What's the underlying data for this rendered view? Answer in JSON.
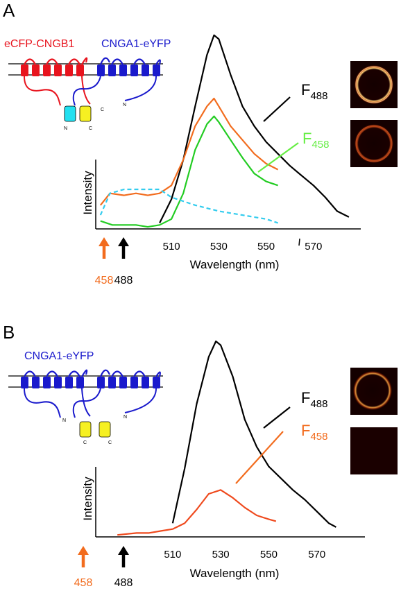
{
  "panels": [
    {
      "letter": "A",
      "construct_labels": [
        {
          "text": "eCFP-CNGB1",
          "color": "#e8141e"
        },
        {
          "text": "CNGA1-eYFP",
          "color": "#1a1acc"
        }
      ],
      "terminal_labels": {
        "n1": "N",
        "c1": "C",
        "c2": "C",
        "n2": "N"
      },
      "chart_data": {
        "type": "line",
        "xlabel": "Wavelength (nm)",
        "ylabel": "Intensity",
        "xticks": [
          510,
          530,
          550,
          570
        ],
        "xlim": [
          478,
          590
        ],
        "ylim": [
          0,
          100
        ],
        "series": [
          {
            "key": "F488",
            "color": "#000000",
            "dash": false,
            "points": [
              [
                505,
                3
              ],
              [
                510,
                15
              ],
              [
                515,
                35
              ],
              [
                520,
                62
              ],
              [
                525,
                88
              ],
              [
                528,
                98
              ],
              [
                530,
                96
              ],
              [
                535,
                78
              ],
              [
                540,
                62
              ],
              [
                545,
                52
              ],
              [
                550,
                44
              ],
              [
                555,
                38
              ],
              [
                560,
                32
              ],
              [
                565,
                27
              ],
              [
                570,
                22
              ],
              [
                575,
                16
              ],
              [
                580,
                9
              ],
              [
                585,
                6
              ]
            ]
          },
          {
            "key": "orange",
            "color": "#f26c1e",
            "dash": false,
            "points": [
              [
                480,
                12
              ],
              [
                484,
                18
              ],
              [
                490,
                17
              ],
              [
                495,
                18
              ],
              [
                500,
                17
              ],
              [
                505,
                18
              ],
              [
                510,
                22
              ],
              [
                515,
                35
              ],
              [
                520,
                52
              ],
              [
                525,
                62
              ],
              [
                528,
                66
              ],
              [
                530,
                62
              ],
              [
                535,
                52
              ],
              [
                540,
                45
              ],
              [
                545,
                38
              ],
              [
                550,
                33
              ],
              [
                555,
                30
              ]
            ]
          },
          {
            "key": "F458",
            "color": "#22cc22",
            "dash": false,
            "points": [
              [
                480,
                4
              ],
              [
                485,
                2
              ],
              [
                490,
                2
              ],
              [
                495,
                2
              ],
              [
                500,
                1
              ],
              [
                505,
                2
              ],
              [
                510,
                5
              ],
              [
                515,
                18
              ],
              [
                520,
                40
              ],
              [
                525,
                53
              ],
              [
                528,
                57
              ],
              [
                530,
                54
              ],
              [
                535,
                45
              ],
              [
                540,
                36
              ],
              [
                545,
                28
              ],
              [
                550,
                24
              ],
              [
                555,
                22
              ]
            ]
          },
          {
            "key": "cyan",
            "color": "#33ccee",
            "dash": true,
            "points": [
              [
                480,
                7
              ],
              [
                484,
                18
              ],
              [
                490,
                20
              ],
              [
                500,
                20
              ],
              [
                505,
                20
              ],
              [
                510,
                16
              ],
              [
                520,
                12
              ],
              [
                530,
                9
              ],
              [
                540,
                7
              ],
              [
                550,
                5
              ],
              [
                555,
                3
              ]
            ]
          }
        ],
        "annotations": [
          {
            "base": "F",
            "sub": "488",
            "color": "#000000"
          },
          {
            "base": "F",
            "sub": "458",
            "color": "#66ee44"
          }
        ],
        "excitation_arrows": [
          {
            "label": "458",
            "color": "#f26c1e"
          },
          {
            "label": "488",
            "color": "#000000"
          }
        ]
      }
    },
    {
      "letter": "B",
      "construct_labels": [
        {
          "text": "CNGA1-eYFP",
          "color": "#1a1acc"
        }
      ],
      "terminal_labels": {
        "n1": "N",
        "c1": "C",
        "c2": "C",
        "n2": "N"
      },
      "chart_data": {
        "type": "line",
        "xlabel": "Wavelength (nm)",
        "ylabel": "Intensity",
        "xticks": [
          510,
          530,
          550,
          570
        ],
        "xlim": [
          478,
          590
        ],
        "ylim": [
          0,
          100
        ],
        "series": [
          {
            "key": "F488",
            "color": "#000000",
            "dash": false,
            "points": [
              [
                510,
                7
              ],
              [
                515,
                35
              ],
              [
                520,
                68
              ],
              [
                525,
                92
              ],
              [
                528,
                100
              ],
              [
                530,
                98
              ],
              [
                535,
                82
              ],
              [
                540,
                60
              ],
              [
                545,
                46
              ],
              [
                550,
                36
              ],
              [
                555,
                30
              ],
              [
                560,
                24
              ],
              [
                565,
                19
              ],
              [
                570,
                13
              ],
              [
                575,
                7
              ],
              [
                578,
                5
              ]
            ]
          },
          {
            "key": "F458",
            "color": "#ef4a1e",
            "dash": false,
            "points": [
              [
                487,
                1
              ],
              [
                495,
                2
              ],
              [
                500,
                2
              ],
              [
                505,
                3
              ],
              [
                510,
                4
              ],
              [
                515,
                7
              ],
              [
                520,
                14
              ],
              [
                525,
                22
              ],
              [
                530,
                24
              ],
              [
                535,
                20
              ],
              [
                540,
                15
              ],
              [
                545,
                11
              ],
              [
                550,
                9
              ],
              [
                553,
                8
              ]
            ]
          }
        ],
        "annotations": [
          {
            "base": "F",
            "sub": "488",
            "color": "#000000"
          },
          {
            "base": "F",
            "sub": "458",
            "color": "#f26c1e"
          }
        ],
        "excitation_arrows": [
          {
            "label": "458",
            "color": "#f26c1e"
          },
          {
            "label": "488",
            "color": "#000000"
          }
        ]
      }
    }
  ]
}
